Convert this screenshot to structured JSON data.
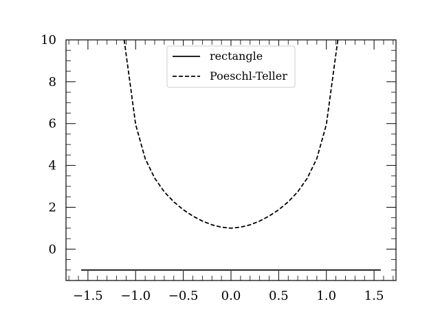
{
  "chart_data": {
    "type": "line",
    "title": "",
    "xlabel": "",
    "ylabel": "",
    "xlim": [
      -1.73,
      1.73
    ],
    "ylim": [
      -1.5,
      10
    ],
    "xticks": [
      -1.5,
      -1.0,
      -0.5,
      0.0,
      0.5,
      1.0,
      1.5
    ],
    "xtick_labels": [
      "−1.5",
      "−1.0",
      "−0.5",
      "0.0",
      "0.5",
      "1.0",
      "1.5"
    ],
    "yticks": [
      0,
      2,
      4,
      6,
      8,
      10
    ],
    "ytick_labels": [
      "0",
      "2",
      "4",
      "6",
      "8",
      "10"
    ],
    "grid": false,
    "legend_position": "top-center",
    "series": [
      {
        "name": "rectangle",
        "style": "solid",
        "color": "#000000",
        "x": [
          -1.5708,
          1.5708
        ],
        "y": [
          -1.0,
          -1.0
        ]
      },
      {
        "name": "Poeschl-Teller",
        "style": "dashed",
        "color": "#000000",
        "x": [
          -1.12,
          -1.0,
          -0.9,
          -0.8,
          -0.7,
          -0.6,
          -0.5,
          -0.4,
          -0.3,
          -0.2,
          -0.1,
          0.0,
          0.1,
          0.2,
          0.3,
          0.4,
          0.5,
          0.6,
          0.7,
          0.8,
          0.9,
          1.0,
          1.12
        ],
        "y": [
          10.0,
          5.96,
          4.33,
          3.39,
          2.74,
          2.26,
          1.88,
          1.58,
          1.34,
          1.16,
          1.05,
          1.0,
          1.05,
          1.16,
          1.34,
          1.58,
          1.88,
          2.26,
          2.74,
          3.39,
          4.33,
          5.96,
          10.0
        ]
      }
    ]
  }
}
